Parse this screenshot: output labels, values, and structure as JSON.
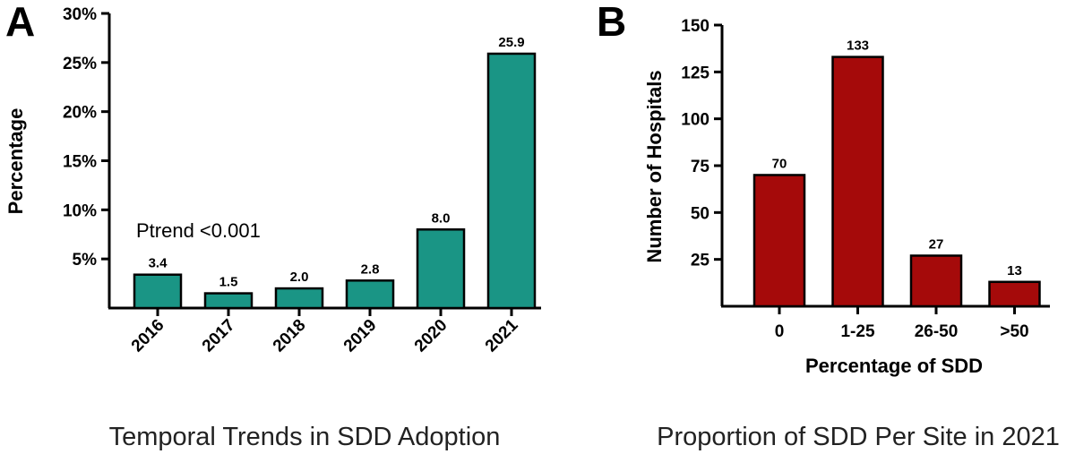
{
  "chart_data": [
    {
      "panel": "A",
      "type": "bar",
      "categories": [
        "2016",
        "2017",
        "2018",
        "2019",
        "2020",
        "2021"
      ],
      "values": [
        3.4,
        1.5,
        2.0,
        2.8,
        8.0,
        25.9
      ],
      "value_labels": [
        "3.4",
        "1.5",
        "2.0",
        "2.8",
        "8.0",
        "25.9"
      ],
      "ylabel": "Percentage",
      "xlabel": "",
      "ylim": [
        0,
        30
      ],
      "yticks": [
        5,
        10,
        15,
        20,
        25,
        30
      ],
      "ytick_labels": [
        "5%",
        "10%",
        "15%",
        "20%",
        "25%",
        "30%"
      ],
      "annotation": "Ptrend <0.001",
      "caption": "Temporal Trends in SDD Adoption",
      "bar_color": "#1a9585"
    },
    {
      "panel": "B",
      "type": "bar",
      "categories": [
        "0",
        "1-25",
        "26-50",
        ">50"
      ],
      "values": [
        70,
        133,
        27,
        13
      ],
      "value_labels": [
        "70",
        "133",
        "27",
        "13"
      ],
      "ylabel": "Number of Hospitals",
      "xlabel": "Percentage of SDD",
      "ylim": [
        0,
        150
      ],
      "yticks": [
        25,
        50,
        75,
        100,
        125,
        150
      ],
      "ytick_labels": [
        "25",
        "50",
        "75",
        "100",
        "125",
        "150"
      ],
      "caption": "Proportion of SDD Per Site in 2021",
      "bar_color": "#a50a0a"
    }
  ]
}
